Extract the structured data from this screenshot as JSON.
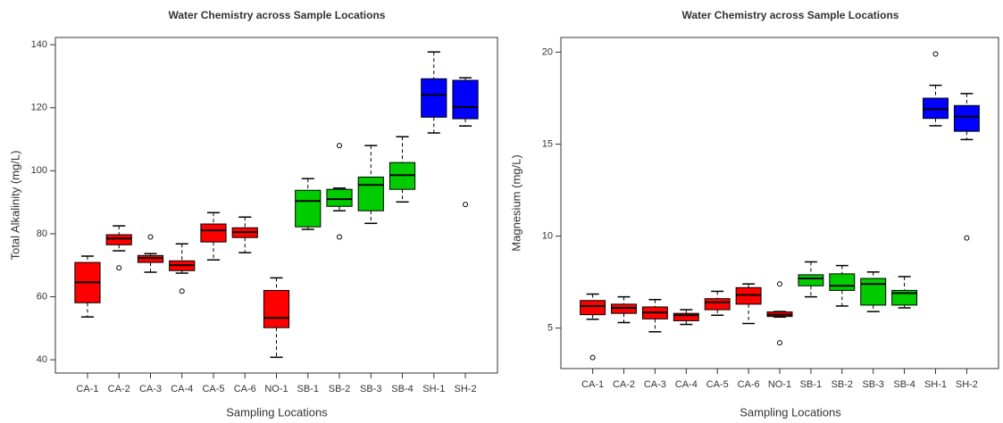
{
  "chart_data": [
    {
      "type": "box",
      "title": "Water Chemistry across Sample Locations",
      "xlabel": "Sampling Locations",
      "ylabel": "Total Alkalinity (mg/L)",
      "categories": [
        "CA-1",
        "CA-2",
        "CA-3",
        "CA-4",
        "CA-5",
        "CA-6",
        "NO-1",
        "SB-1",
        "SB-2",
        "SB-3",
        "SB-4",
        "SH-1",
        "SH-2"
      ],
      "colors": [
        "#ff0000",
        "#ff0000",
        "#ff0000",
        "#ff0000",
        "#ff0000",
        "#ff0000",
        "#ff0000",
        "#00cc00",
        "#00cc00",
        "#00cc00",
        "#00cc00",
        "#0000ff",
        "#0000ff"
      ],
      "boxes": [
        {
          "whislo": 53.6,
          "q1": 58.1,
          "med": 64.6,
          "q3": 70.9,
          "whishi": 72.9,
          "fliers": []
        },
        {
          "whislo": 74.6,
          "q1": 76.5,
          "med": 78.5,
          "q3": 79.7,
          "whishi": 82.5,
          "fliers": [
            69.2
          ]
        },
        {
          "whislo": 67.8,
          "q1": 70.9,
          "med": 72.3,
          "q3": 73.1,
          "whishi": 73.7,
          "fliers": [
            79
          ]
        },
        {
          "whislo": 67.5,
          "q1": 68.3,
          "med": 70,
          "q3": 71.4,
          "whishi": 76.8,
          "fliers": [
            61.8
          ]
        },
        {
          "whislo": 71.7,
          "q1": 77.4,
          "med": 81.1,
          "q3": 83.1,
          "whishi": 86.7,
          "fliers": []
        },
        {
          "whislo": 74,
          "q1": 78.8,
          "med": 80.5,
          "q3": 81.9,
          "whishi": 85.3,
          "fliers": []
        },
        {
          "whislo": 40.8,
          "q1": 50.2,
          "med": 53.3,
          "q3": 62,
          "whishi": 66,
          "fliers": []
        },
        {
          "whislo": 81.4,
          "q1": 82.2,
          "med": 90.4,
          "q3": 93.8,
          "whishi": 97.5,
          "fliers": []
        },
        {
          "whislo": 87.3,
          "q1": 88.7,
          "med": 91,
          "q3": 94.1,
          "whishi": 94.5,
          "fliers": [
            108,
            79
          ]
        },
        {
          "whislo": 83.3,
          "q1": 87.3,
          "med": 95.5,
          "q3": 98,
          "whishi": 108,
          "fliers": []
        },
        {
          "whislo": 90.1,
          "q1": 94.1,
          "med": 98.6,
          "q3": 102.6,
          "whishi": 110.8,
          "fliers": []
        },
        {
          "whislo": 112,
          "q1": 117,
          "med": 124.1,
          "q3": 129.2,
          "whishi": 137.7,
          "fliers": []
        },
        {
          "whislo": 114.2,
          "q1": 116.5,
          "med": 120.2,
          "q3": 128.7,
          "whishi": 129.5,
          "fliers": [
            89.3
          ]
        }
      ],
      "ylim": [
        35.8,
        142.3
      ],
      "yticks": [
        40,
        60,
        80,
        100,
        120,
        140
      ]
    },
    {
      "type": "box",
      "title": "Water Chemistry across Sample Locations",
      "xlabel": "Sampling Locations",
      "ylabel": "Magnesium (mg/L)",
      "categories": [
        "CA-1",
        "CA-2",
        "CA-3",
        "CA-4",
        "CA-5",
        "CA-6",
        "NO-1",
        "SB-1",
        "SB-2",
        "SB-3",
        "SB-4",
        "SH-1",
        "SH-2"
      ],
      "colors": [
        "#ff0000",
        "#ff0000",
        "#ff0000",
        "#ff0000",
        "#ff0000",
        "#ff0000",
        "#ff0000",
        "#00cc00",
        "#00cc00",
        "#00cc00",
        "#00cc00",
        "#0000ff",
        "#0000ff"
      ],
      "boxes": [
        {
          "whislo": 5.48,
          "q1": 5.73,
          "med": 6.2,
          "q3": 6.5,
          "whishi": 6.85,
          "fliers": [
            3.4
          ]
        },
        {
          "whislo": 5.3,
          "q1": 5.8,
          "med": 6.1,
          "q3": 6.3,
          "whishi": 6.7,
          "fliers": []
        },
        {
          "whislo": 4.8,
          "q1": 5.5,
          "med": 5.85,
          "q3": 6.15,
          "whishi": 6.55,
          "fliers": []
        },
        {
          "whislo": 5.2,
          "q1": 5.4,
          "med": 5.7,
          "q3": 5.8,
          "whishi": 6.0,
          "fliers": []
        },
        {
          "whislo": 5.7,
          "q1": 6.0,
          "med": 6.4,
          "q3": 6.6,
          "whishi": 7.0,
          "fliers": []
        },
        {
          "whislo": 5.25,
          "q1": 6.3,
          "med": 6.8,
          "q3": 7.2,
          "whishi": 7.4,
          "fliers": []
        },
        {
          "whislo": 5.6,
          "q1": 5.63,
          "med": 5.73,
          "q3": 5.88,
          "whishi": 5.9,
          "fliers": [
            7.4,
            4.2
          ]
        },
        {
          "whislo": 6.7,
          "q1": 7.3,
          "med": 7.7,
          "q3": 7.9,
          "whishi": 8.6,
          "fliers": []
        },
        {
          "whislo": 6.2,
          "q1": 7.05,
          "med": 7.3,
          "q3": 7.95,
          "whishi": 8.4,
          "fliers": []
        },
        {
          "whislo": 5.9,
          "q1": 6.25,
          "med": 7.4,
          "q3": 7.7,
          "whishi": 8.05,
          "fliers": []
        },
        {
          "whislo": 6.1,
          "q1": 6.25,
          "med": 6.9,
          "q3": 7.05,
          "whishi": 7.8,
          "fliers": []
        },
        {
          "whislo": 16.0,
          "q1": 16.4,
          "med": 16.9,
          "q3": 17.5,
          "whishi": 18.2,
          "fliers": [
            19.9
          ]
        },
        {
          "whislo": 15.25,
          "q1": 15.7,
          "med": 16.5,
          "q3": 17.1,
          "whishi": 17.75,
          "fliers": [
            9.9
          ]
        }
      ],
      "ylim": [
        2.8,
        20.8
      ],
      "yticks": [
        5,
        10,
        15,
        20
      ]
    }
  ]
}
